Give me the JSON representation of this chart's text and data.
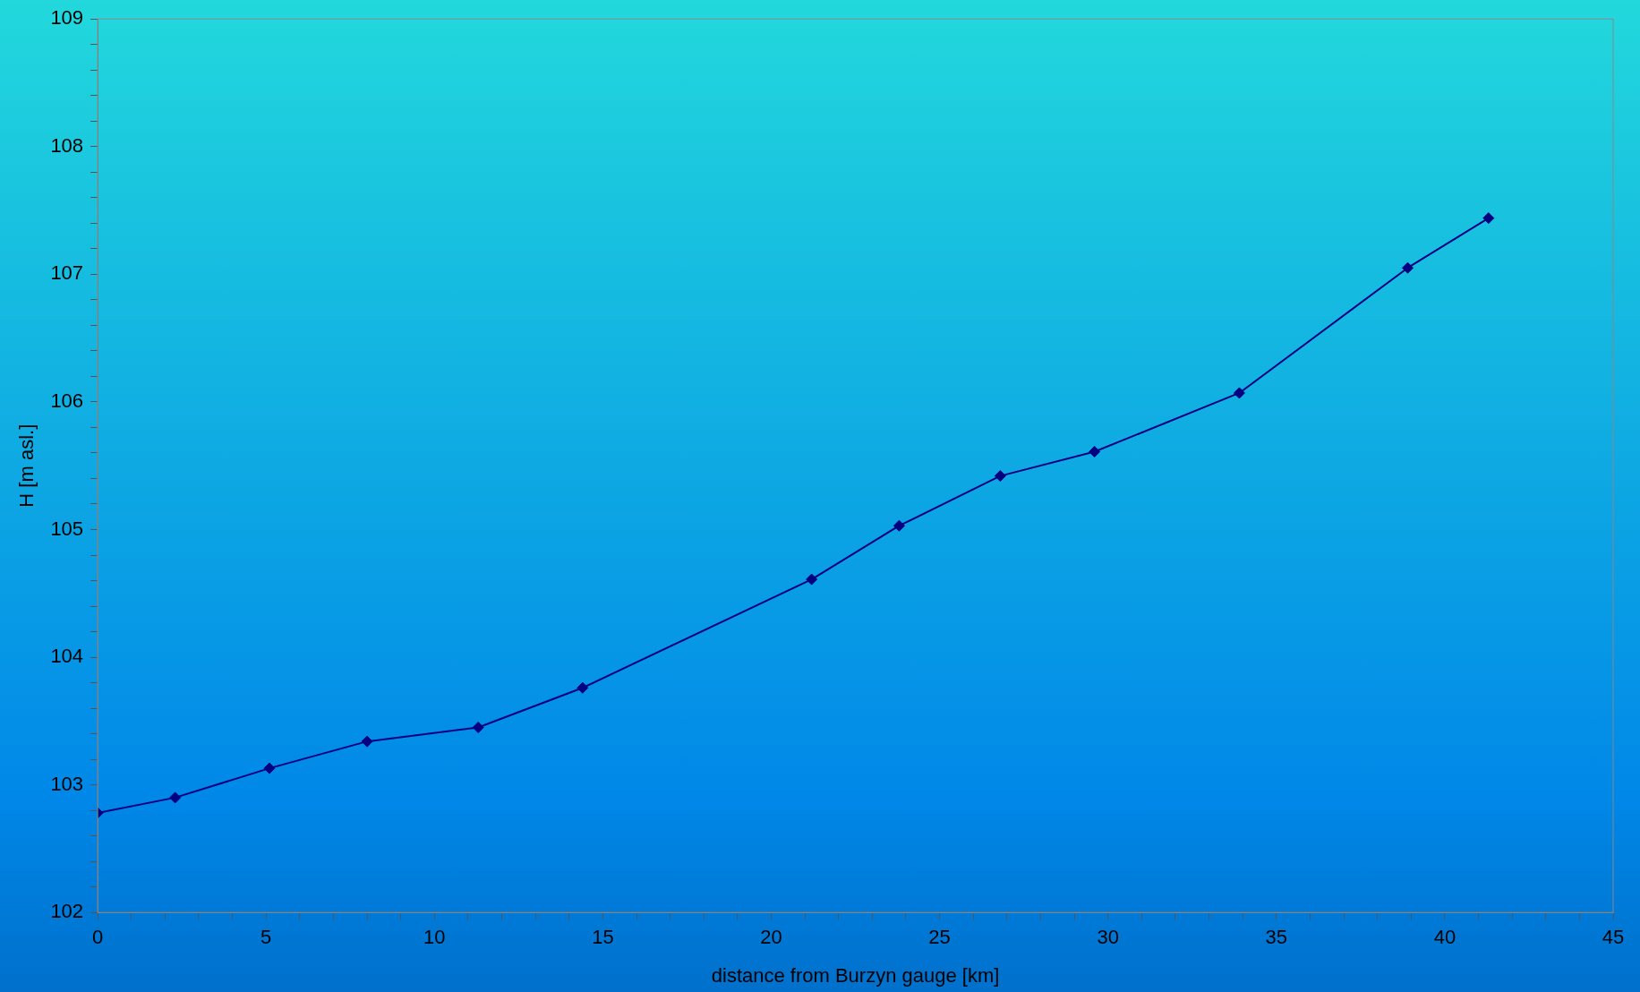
{
  "chart_data": {
    "type": "line",
    "xlabel": "distance from Burzyn gauge [km]",
    "ylabel": "H [m asl.]",
    "x": [
      0,
      2.3,
      5.1,
      8.0,
      11.3,
      14.4,
      21.2,
      23.8,
      26.8,
      29.6,
      33.9,
      38.9,
      41.3
    ],
    "series": [
      {
        "color": "#000080",
        "values": [
          102.78,
          102.9,
          103.13,
          103.34,
          103.45,
          103.76,
          104.61,
          105.03,
          105.42,
          105.61,
          106.07,
          107.05,
          107.44
        ]
      }
    ],
    "xlim": [
      0,
      45
    ],
    "xticks": [
      0,
      {
        "value": 1,
        "label": null
      },
      {
        "value": 2,
        "label": null
      },
      {
        "value": 3,
        "label": null
      },
      {
        "value": 4,
        "label": null
      },
      5,
      {
        "value": 6,
        "label": null
      },
      {
        "value": 7,
        "label": null
      },
      {
        "value": 8,
        "label": null
      },
      {
        "value": 9,
        "label": null
      },
      10,
      {
        "value": 11,
        "label": null
      },
      {
        "value": 12,
        "label": null
      },
      {
        "value": 13,
        "label": null
      },
      {
        "value": 14,
        "label": null
      },
      15,
      {
        "value": 16,
        "label": null
      },
      {
        "value": 17,
        "label": null
      },
      {
        "value": 18,
        "label": null
      },
      {
        "value": 19,
        "label": null
      },
      20,
      {
        "value": 21,
        "label": null
      },
      {
        "value": 22,
        "label": null
      },
      {
        "value": 23,
        "label": null
      },
      {
        "value": 24,
        "label": null
      },
      25,
      {
        "value": 26,
        "label": null
      },
      {
        "value": 27,
        "label": null
      },
      {
        "value": 28,
        "label": null
      },
      {
        "value": 29,
        "label": null
      },
      30,
      {
        "value": 31,
        "label": null
      },
      {
        "value": 32,
        "label": null
      },
      {
        "value": 33,
        "label": null
      },
      {
        "value": 34,
        "label": null
      },
      35,
      {
        "value": 36,
        "label": null
      },
      {
        "value": 37,
        "label": null
      },
      {
        "value": 38,
        "label": null
      },
      {
        "value": 39,
        "label": null
      },
      40,
      {
        "value": 41,
        "label": null
      },
      {
        "value": 42,
        "label": null
      },
      {
        "value": 43,
        "label": null
      },
      {
        "value": 44,
        "label": null
      },
      45
    ],
    "ylim": [
      102,
      109
    ],
    "yticks": [
      102,
      {
        "value": 102.2,
        "label": null
      },
      {
        "value": 102.4,
        "label": null
      },
      {
        "value": 102.6,
        "label": null
      },
      {
        "value": 102.8,
        "label": null
      },
      103,
      {
        "value": 103.2,
        "label": null
      },
      {
        "value": 103.4,
        "label": null
      },
      {
        "value": 103.6,
        "label": null
      },
      {
        "value": 103.8,
        "label": null
      },
      104,
      {
        "value": 104.2,
        "label": null
      },
      {
        "value": 104.4,
        "label": null
      },
      {
        "value": 104.6,
        "label": null
      },
      {
        "value": 104.8,
        "label": null
      },
      105,
      {
        "value": 105.2,
        "label": null
      },
      {
        "value": 105.4,
        "label": null
      },
      {
        "value": 105.6,
        "label": null
      },
      {
        "value": 105.8,
        "label": null
      },
      106,
      {
        "value": 106.2,
        "label": null
      },
      {
        "value": 106.4,
        "label": null
      },
      {
        "value": 106.6,
        "label": null
      },
      {
        "value": 106.8,
        "label": null
      },
      107,
      {
        "value": 107.2,
        "label": null
      },
      {
        "value": 107.4,
        "label": null
      },
      {
        "value": 107.6,
        "label": null
      },
      {
        "value": 107.8,
        "label": null
      },
      108,
      {
        "value": 108.2,
        "label": null
      },
      {
        "value": 108.4,
        "label": null
      },
      {
        "value": 108.6,
        "label": null
      },
      {
        "value": 108.8,
        "label": null
      },
      109
    ],
    "grid": false,
    "legend": false,
    "marker": "diamond",
    "line_style": "solid"
  }
}
